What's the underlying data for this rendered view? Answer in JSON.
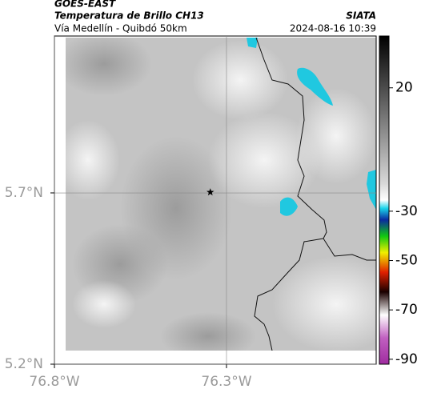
{
  "header": {
    "title": "GOES-EAST",
    "subtitle": "Temperatura de Brillo CH13",
    "route": "Vía Medellín - Quibdó 50km",
    "source": "SIATA",
    "datetime": "2024-08-16 10:39"
  },
  "map": {
    "xlim": [
      -76.8,
      -75.865
    ],
    "ylim": [
      5.2,
      6.158
    ],
    "xticks": [
      {
        "value": -76.8,
        "label": "76.8°W"
      },
      {
        "value": -76.3,
        "label": "76.3°W"
      }
    ],
    "yticks": [
      {
        "value": 5.2,
        "label": "5.2°N"
      },
      {
        "value": 5.7,
        "label": "5.7°N"
      }
    ],
    "grid": true,
    "marker": {
      "x": -76.347,
      "y": 5.702
    }
  },
  "colorbar": {
    "clim": [
      -92,
      41
    ],
    "ticks": [
      20,
      -30,
      -50,
      -70,
      -90
    ]
  }
}
